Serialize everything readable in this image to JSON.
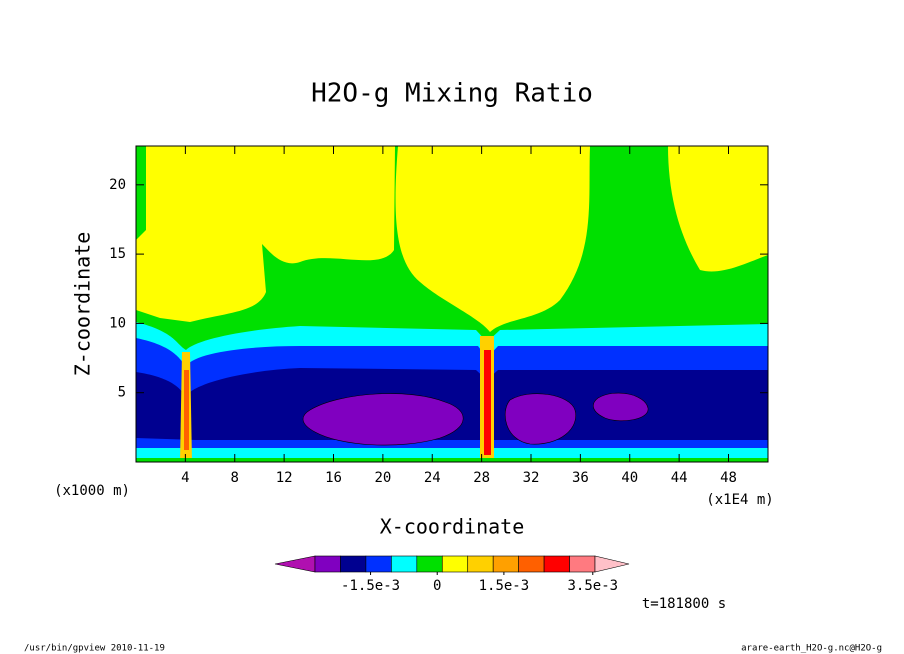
{
  "chart_data": {
    "type": "contour",
    "title": "H2O-g Mixing Ratio",
    "x_label": "X-coordinate",
    "y_label": "Z-coordinate",
    "x_unit": "(x1E4 m)",
    "y_unit": "(x1000 m)",
    "xlim": [
      0,
      51.2
    ],
    "ylim": [
      0,
      22.8
    ],
    "xticks": [
      4,
      8,
      12,
      16,
      20,
      24,
      28,
      32,
      36,
      40,
      44,
      48
    ],
    "yticks": [
      5,
      10,
      15,
      20
    ],
    "colorbar": {
      "colors": [
        "#b010b0",
        "#8000c0",
        "#000090",
        "#0030ff",
        "#00ffff",
        "#00e000",
        "#ffff00",
        "#ffd000",
        "#ffa000",
        "#ff6000",
        "#ff0000",
        "#ff7a80",
        "#ffc0c8"
      ],
      "clim": [
        -0.00275,
        0.00355
      ],
      "ticks": [
        {
          "value": -0.0015,
          "label": "-1.5e-3"
        },
        0,
        {
          "value": 0.0015,
          "label": "1.5e-3"
        },
        {
          "value": 0.0035,
          "label": "3.5e-3"
        }
      ]
    },
    "time_label": "t=181800 s",
    "footer_left": "/usr/bin/gpview  2010-11-19",
    "footer_right": "arare-earth_H2O-g.nc@H2O-g"
  }
}
